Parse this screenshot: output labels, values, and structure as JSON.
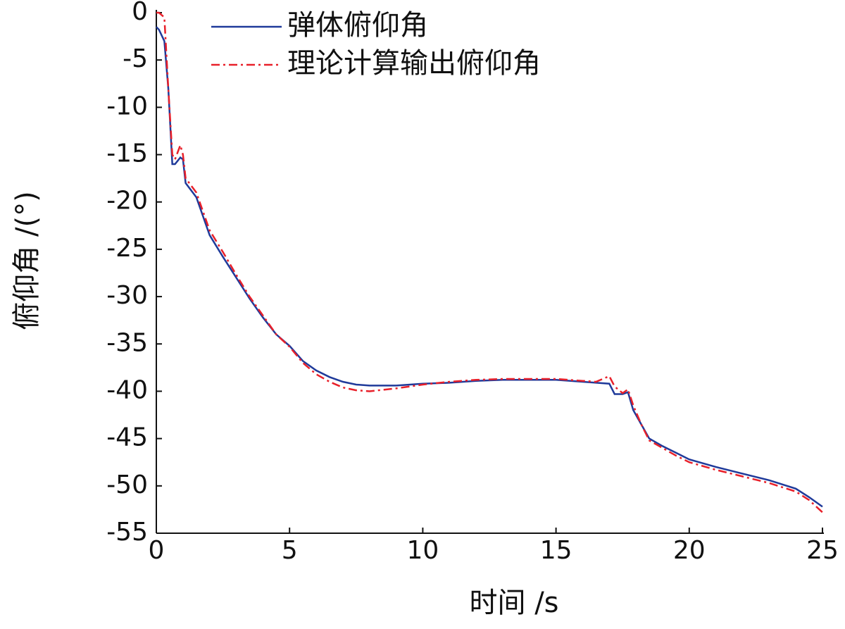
{
  "chart_data": {
    "type": "line",
    "xlabel": "时间 /s",
    "ylabel": "俯仰角 /(°)",
    "x": [
      0,
      0.1,
      0.3,
      0.45,
      0.6,
      0.7,
      0.9,
      1.0,
      1.1,
      1.5,
      2,
      2.5,
      3,
      3.5,
      4,
      4.5,
      5,
      5.5,
      6,
      6.5,
      7,
      7.5,
      8,
      9,
      10,
      11,
      12,
      13,
      14,
      15,
      16,
      16.5,
      17,
      17.2,
      17.5,
      17.7,
      17.9,
      18.2,
      18.5,
      19,
      19.5,
      20,
      21,
      22,
      23,
      24,
      24.5,
      25
    ],
    "series": [
      {
        "name": "弹体俯仰角",
        "color": "#1f3a9a",
        "dash": "solid",
        "values": [
          -1.5,
          -1.8,
          -3,
          -8,
          -16,
          -16,
          -15.3,
          -15.5,
          -18,
          -19.5,
          -23.5,
          -25.8,
          -28,
          -30.2,
          -32.2,
          -34,
          -35.2,
          -36.8,
          -37.8,
          -38.5,
          -39,
          -39.3,
          -39.4,
          -39.4,
          -39.2,
          -39.1,
          -38.9,
          -38.8,
          -38.8,
          -38.8,
          -39,
          -39.1,
          -39.2,
          -40.3,
          -40.3,
          -40.1,
          -42,
          -43.5,
          -45,
          -45.8,
          -46.5,
          -47.2,
          -48,
          -48.7,
          -49.4,
          -50.3,
          -51.2,
          -52.2
        ]
      },
      {
        "name": "理论计算输出俯仰角",
        "color": "#e8202a",
        "dash": "dashdot",
        "values": [
          0,
          0,
          -0.5,
          -8,
          -15,
          -15.5,
          -14,
          -15,
          -17.5,
          -19,
          -23,
          -25.3,
          -27.7,
          -30,
          -32,
          -34,
          -35.3,
          -37,
          -38.2,
          -39,
          -39.6,
          -39.9,
          -40,
          -39.7,
          -39.3,
          -39,
          -38.8,
          -38.7,
          -38.7,
          -38.7,
          -38.9,
          -39,
          -38.4,
          -39.5,
          -40.2,
          -39.8,
          -41.5,
          -43.5,
          -45.2,
          -46,
          -46.8,
          -47.5,
          -48.3,
          -49,
          -49.7,
          -50.6,
          -51.5,
          -52.8
        ]
      }
    ],
    "xlim": [
      0,
      25
    ],
    "xticks": [
      0,
      5,
      10,
      15,
      20,
      25
    ],
    "ylim": [
      -55,
      0
    ],
    "yticks": [
      0,
      -5,
      -10,
      -15,
      -20,
      -25,
      -30,
      -35,
      -40,
      -45,
      -50,
      -55
    ],
    "grid": false,
    "legend": "upper left"
  }
}
